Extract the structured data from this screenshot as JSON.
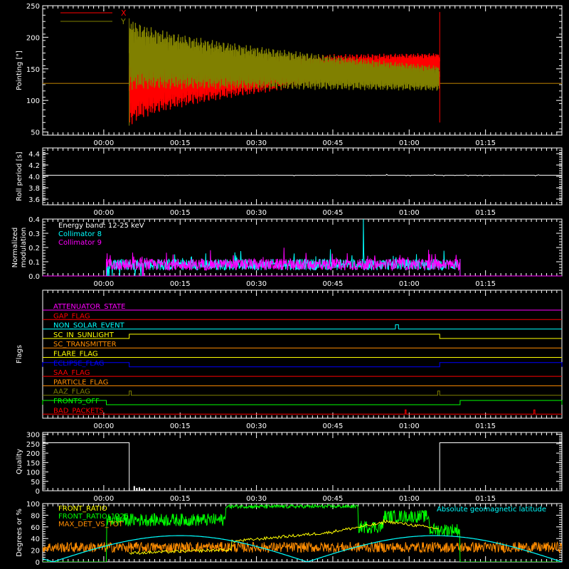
{
  "time_ticks": [
    "00:00",
    "00:15",
    "00:30",
    "00:45",
    "01:00",
    "01:15"
  ],
  "time_tick_values": [
    0,
    15,
    30,
    45,
    60,
    75
  ],
  "time_range": [
    -12,
    90
  ],
  "chart_data": [
    {
      "type": "line",
      "id": "pointing",
      "ylabel": "Pointing [\"]",
      "ylim": [
        45,
        250
      ],
      "yticks": [
        50,
        100,
        150,
        200,
        250
      ],
      "grid": false,
      "legend": "top-left",
      "series": [
        {
          "name": "X",
          "color": "#ff0000",
          "baseline": 127,
          "start": 5,
          "end": 66,
          "osc_center": [
            115,
            160
          ],
          "amp": [
            60,
            15
          ]
        },
        {
          "name": "Y",
          "color": "#808000",
          "baseline": 127,
          "start": 5,
          "end": 66,
          "osc_center": [
            175,
            135
          ],
          "amp": [
            60,
            20
          ]
        }
      ]
    },
    {
      "type": "line",
      "id": "roll",
      "ylabel": "Roll period [s]",
      "ylim": [
        3.5,
        4.5
      ],
      "yticks": [
        3.6,
        3.8,
        4.0,
        4.2,
        4.4
      ],
      "series": [
        {
          "color": "#ffffff",
          "value": 4.02,
          "range": [
            -12,
            90
          ]
        }
      ]
    },
    {
      "type": "line",
      "id": "modulation",
      "ylabel": "Normalized modulation",
      "ylim": [
        0,
        0.4
      ],
      "yticks": [
        0.0,
        0.1,
        0.2,
        0.3,
        0.4
      ],
      "annotation": "Energy band: 12-25 keV",
      "legend": "top-left",
      "series": [
        {
          "name": "Collimator 8",
          "color": "#00ffff",
          "start": 0.5,
          "end": 70,
          "level": 0.08,
          "spike_at": 51,
          "spike_value": 0.4
        },
        {
          "name": "Collimator 9",
          "color": "#ff00ff",
          "start": 0.5,
          "end": 70,
          "level": 0.08
        }
      ]
    },
    {
      "type": "line",
      "id": "flags",
      "ylabel": "Flags",
      "series": [
        {
          "name": "ATTENUATOR_STATE",
          "color": "#ff00ff",
          "segments": []
        },
        {
          "name": "GAP_FLAG",
          "color": "#ff0000",
          "segments": []
        },
        {
          "name": "NON_SOLAR_EVENT",
          "color": "#00ffff",
          "segments": [
            [
              57.3,
              57.9
            ]
          ]
        },
        {
          "name": "SC_IN_SUNLIGHT",
          "color": "#ffff00",
          "segments": [
            [
              5,
              66
            ]
          ]
        },
        {
          "name": "SC_TRANSMITTER",
          "color": "#ff8c00",
          "segments": []
        },
        {
          "name": "FLARE_FLAG",
          "color": "#ffff00",
          "segments": []
        },
        {
          "name": "ECLIPSE_FLAG",
          "color": "#0000ff",
          "segments": [
            [
              -12,
              5
            ],
            [
              66,
              90
            ]
          ]
        },
        {
          "name": "SAA_FLAG",
          "color": "#ff0000",
          "segments": []
        },
        {
          "name": "PARTICLE_FLAG",
          "color": "#ff8c00",
          "segments": []
        },
        {
          "name": "AAZ_FLAG",
          "color": "#808000",
          "segments": [
            [
              5,
              5.4
            ],
            [
              65.6,
              66
            ]
          ]
        },
        {
          "name": "FRONTS_OFF",
          "color": "#00ff00",
          "segments": [
            [
              -12,
              0.5
            ],
            [
              70,
              90
            ]
          ]
        },
        {
          "name": "BAD_PACKETS",
          "color": "#ff0000",
          "segments": [
            [
              59.2,
              59.4
            ],
            [
              84.5,
              84.7
            ]
          ]
        }
      ]
    },
    {
      "type": "line",
      "id": "quality",
      "ylabel": "Quality",
      "ylim": [
        0,
        310
      ],
      "yticks": [
        0,
        50,
        100,
        150,
        200,
        250,
        300
      ],
      "series": [
        {
          "color": "#ffffff",
          "high": 255,
          "low": 0,
          "low_range": [
            5,
            66
          ],
          "blips": [
            [
              6,
              25
            ],
            [
              6.5,
              15
            ],
            [
              7,
              18
            ],
            [
              7.5,
              10
            ],
            [
              8,
              15
            ],
            [
              9,
              8
            ]
          ]
        }
      ]
    },
    {
      "type": "line",
      "id": "ratios",
      "ylabel": "Degrees or %",
      "ylim": [
        0,
        100
      ],
      "yticks": [
        0,
        20,
        40,
        60,
        80,
        100
      ],
      "legend": "top-left",
      "annotation": "Absolute geomagnetic latitude",
      "annotation_color": "#00ffff",
      "series": [
        {
          "name": "FRONT_RATIO",
          "color": "#ffff00"
        },
        {
          "name": "FRONT_RATIO_1225",
          "color": "#00ff00"
        },
        {
          "name": "MAX_DET_VS_TOT",
          "color": "#ff8c00"
        },
        {
          "name": "Absolute geomagnetic latitude",
          "color": "#00ffff"
        }
      ]
    }
  ]
}
